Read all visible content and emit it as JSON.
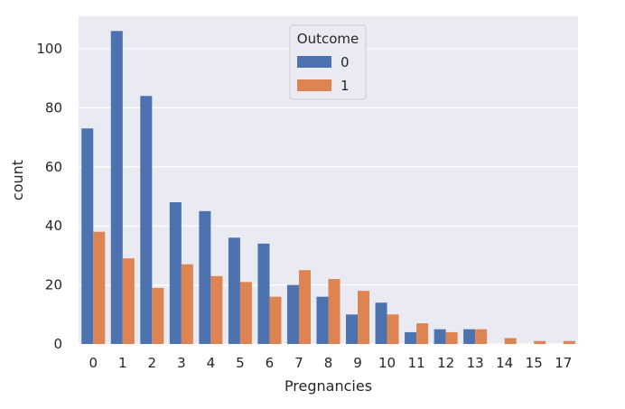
{
  "chart_data": {
    "type": "bar",
    "title": "",
    "xlabel": "Pregnancies",
    "ylabel": "count",
    "categories": [
      "0",
      "1",
      "2",
      "3",
      "4",
      "5",
      "6",
      "7",
      "8",
      "9",
      "10",
      "11",
      "12",
      "13",
      "14",
      "15",
      "17"
    ],
    "series": [
      {
        "name": "0",
        "color": "#4c72b0",
        "values": [
          73,
          106,
          84,
          48,
          45,
          36,
          34,
          20,
          16,
          10,
          14,
          4,
          5,
          5,
          0,
          0,
          0
        ]
      },
      {
        "name": "1",
        "color": "#dd8452",
        "values": [
          38,
          29,
          19,
          27,
          23,
          21,
          16,
          25,
          22,
          18,
          10,
          7,
          4,
          5,
          2,
          1,
          1
        ]
      }
    ],
    "ylim": [
      0,
      111
    ],
    "yticks": [
      0,
      20,
      40,
      60,
      80,
      100
    ],
    "grid": true,
    "legend": {
      "title": "Outcome",
      "placement": "upper-center"
    },
    "background": "#eaeaf2"
  }
}
